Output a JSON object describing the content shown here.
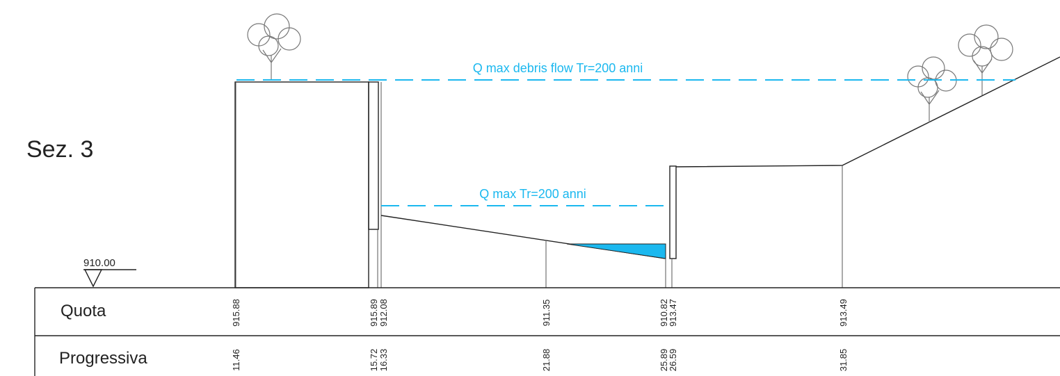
{
  "title": "Sez. 3",
  "datum": "910.00",
  "water_levels": [
    {
      "label": "Q max debris flow Tr=200 anni"
    },
    {
      "label": "Q max Tr=200 anni"
    }
  ],
  "table": {
    "row_labels": [
      "Quota",
      "Progressiva"
    ],
    "columns": [
      {
        "quota": "915.88",
        "progressiva": "11.46"
      },
      {
        "quota": "915.89",
        "progressiva": "15.72"
      },
      {
        "quota": "912.08",
        "progressiva": "16.33"
      },
      {
        "quota": "911.35",
        "progressiva": "21.88"
      },
      {
        "quota": "910.82",
        "progressiva": "25.89"
      },
      {
        "quota": "913.47",
        "progressiva": "26.59"
      },
      {
        "quota": "913.49",
        "progressiva": "31.85"
      }
    ]
  }
}
